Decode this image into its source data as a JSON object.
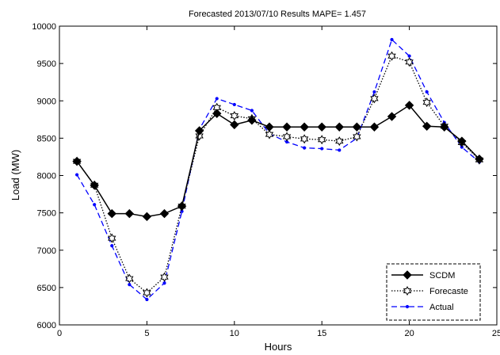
{
  "chart_data": {
    "type": "line",
    "title": "Forecasted 2013/07/10 Results MAPE= 1.457",
    "xlabel": "Hours",
    "ylabel": "Load (MW)",
    "xlim": [
      0,
      25
    ],
    "ylim": [
      6000,
      10000
    ],
    "xticks": [
      0,
      5,
      10,
      15,
      20,
      25
    ],
    "yticks": [
      6000,
      6500,
      7000,
      7500,
      8000,
      8500,
      9000,
      9500,
      10000
    ],
    "xtick_labels": [
      "0",
      "5",
      "10",
      "15",
      "20",
      "25"
    ],
    "ytick_labels": [
      "6000",
      "6500",
      "7000",
      "7500",
      "8000",
      "8500",
      "9000",
      "9500",
      "10000"
    ],
    "grid": false,
    "legend_position": "bottom-right",
    "x": [
      1,
      2,
      3,
      4,
      5,
      6,
      7,
      8,
      9,
      10,
      11,
      12,
      13,
      14,
      15,
      16,
      17,
      18,
      19,
      20,
      21,
      22,
      23,
      24
    ],
    "series": [
      {
        "name": "SCDM",
        "color": "#000000",
        "style": "solid",
        "marker": "diamond",
        "values": [
          8190,
          7870,
          7490,
          7490,
          7450,
          7490,
          7590,
          8600,
          8830,
          8680,
          8740,
          8650,
          8650,
          8650,
          8650,
          8650,
          8650,
          8650,
          8790,
          8940,
          8660,
          8650,
          8460,
          8220
        ]
      },
      {
        "name": "Forecaste",
        "color": "#000000",
        "style": "dotted",
        "marker": "hexagram",
        "values": [
          8190,
          7870,
          7160,
          6620,
          6430,
          6640,
          7590,
          8530,
          8910,
          8800,
          8760,
          8550,
          8520,
          8490,
          8480,
          8460,
          8520,
          9030,
          9600,
          9520,
          8980,
          8660,
          8440,
          8210
        ]
      },
      {
        "name": "Actual",
        "color": "#0000ff",
        "style": "dashed",
        "marker": "point",
        "values": [
          8010,
          7610,
          7060,
          6540,
          6340,
          6560,
          7520,
          8620,
          9030,
          8950,
          8870,
          8560,
          8450,
          8370,
          8360,
          8340,
          8500,
          9120,
          9820,
          9600,
          9120,
          8710,
          8380,
          8180
        ]
      }
    ]
  }
}
